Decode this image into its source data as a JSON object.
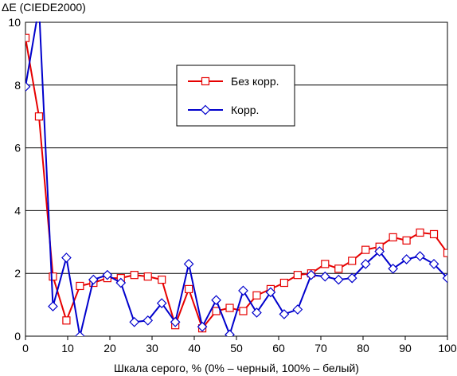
{
  "chart_data": {
    "type": "line",
    "title": "ΔE (CIEDE2000)",
    "xlabel": "Шкала серого, % (0% – черный, 100% – белый)",
    "ylabel": "",
    "xlim": [
      0,
      100
    ],
    "ylim": [
      0,
      10
    ],
    "x_ticks": [
      "0",
      "10",
      "20",
      "30",
      "40",
      "50",
      "60",
      "70",
      "80",
      "90",
      "100"
    ],
    "y_ticks": [
      "0",
      "2",
      "4",
      "6",
      "8",
      "10"
    ],
    "grid": "horizontal",
    "legend_position": "inside-top-center",
    "x": [
      0,
      3.2,
      6.5,
      9.7,
      12.9,
      16.1,
      19.4,
      22.6,
      25.8,
      29,
      32.3,
      35.5,
      38.7,
      41.9,
      45.2,
      48.4,
      51.6,
      54.8,
      58.1,
      61.3,
      64.5,
      67.7,
      71,
      74.2,
      77.4,
      80.6,
      83.9,
      87.1,
      90.3,
      93.5,
      96.8,
      100
    ],
    "series": [
      {
        "name": "Без корр.",
        "color": "#e60000",
        "marker": "square",
        "values": [
          9.5,
          7.0,
          1.9,
          0.5,
          1.6,
          1.7,
          1.85,
          1.85,
          1.95,
          1.9,
          1.8,
          0.35,
          1.5,
          0.25,
          0.8,
          0.9,
          0.8,
          1.3,
          1.5,
          1.7,
          1.95,
          2.0,
          2.3,
          2.15,
          2.4,
          2.75,
          2.85,
          3.15,
          3.05,
          3.3,
          3.25,
          2.65
        ]
      },
      {
        "name": "Корр.",
        "color": "#0000cc",
        "marker": "diamond",
        "values": [
          7.95,
          10.5,
          0.95,
          2.5,
          0.0,
          1.8,
          1.95,
          1.7,
          0.45,
          0.5,
          1.05,
          0.45,
          2.3,
          0.3,
          1.15,
          0.05,
          1.45,
          0.75,
          1.4,
          0.7,
          0.85,
          1.95,
          1.9,
          1.8,
          1.85,
          2.3,
          2.7,
          2.15,
          2.45,
          2.55,
          2.3,
          1.85
        ]
      }
    ]
  }
}
